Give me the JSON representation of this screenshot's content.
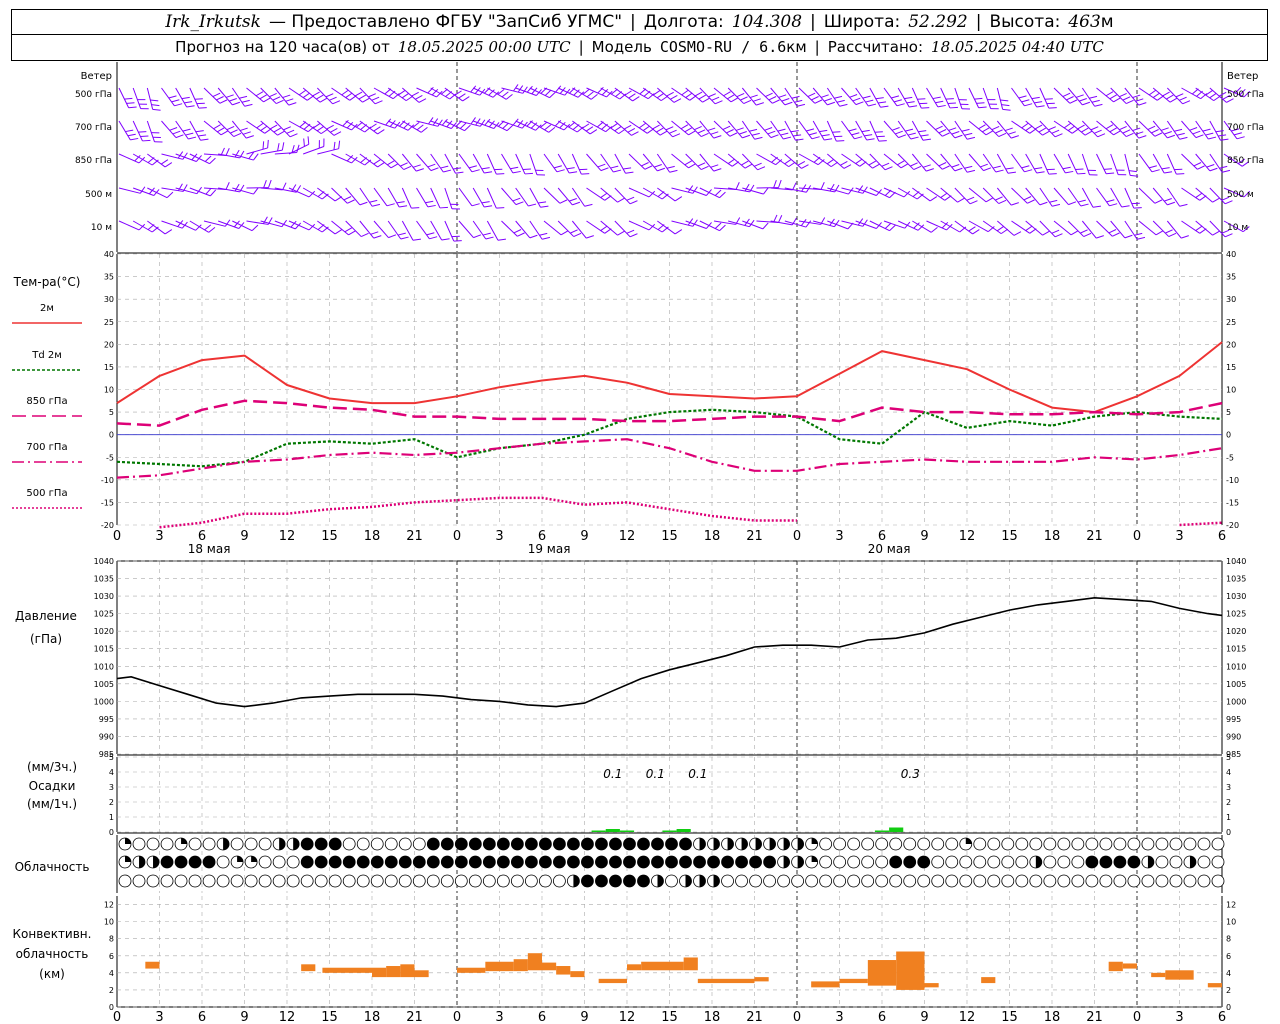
{
  "header": {
    "station": "Irk_Irkutsk",
    "provider": "— Предоставлено ФГБУ \"ЗапСиб УГМС\"",
    "lon_label": "Долгота:",
    "lon_value": "104.308",
    "lat_label": "Широта:",
    "lat_value": "52.292",
    "alt_label": "Высота:",
    "alt_value": "463",
    "alt_unit": "м",
    "forecast_label": "Прогноз на 120 часа(ов) от",
    "forecast_start": "18.05.2025 00:00 UTC",
    "model_label": "Модель",
    "model_name": "COSMO-RU / 6.6",
    "model_unit": "км",
    "computed_label": "Рассчитано:",
    "computed_time": "18.05.2025 04:40 UTC"
  },
  "colors": {
    "wind": "#8000ff",
    "t2m": "#ee3333",
    "td2m": "#007700",
    "t850": "#dd0077",
    "t700": "#dd0077",
    "t500": "#dd0077",
    "zero_line": "#3333cc",
    "pressure": "#000000",
    "precip": "#11cc11",
    "conv_cloud": "#f08020"
  },
  "wind_panel": {
    "label": "Ветер",
    "levels": [
      "500 гПа",
      "700 гПа",
      "850 гПа",
      "500 м",
      "10 м"
    ]
  },
  "temp_panel": {
    "title": "Тем-ра(°C)",
    "legend": [
      {
        "label": "2м",
        "key": "t2m",
        "dash": ""
      },
      {
        "label": "Td  2м",
        "key": "td2m",
        "dash": "3,2"
      },
      {
        "label": "850 гПа",
        "key": "t850",
        "dash": "14,6"
      },
      {
        "label": "700 гПа",
        "key": "t700",
        "dash": "12,4,2,4"
      },
      {
        "label": "500 гПа",
        "key": "t500",
        "dash": "2,2"
      }
    ],
    "y_ticks": [
      40,
      35,
      30,
      25,
      20,
      15,
      10,
      5,
      0,
      -5,
      -10,
      -15,
      -20
    ]
  },
  "time_axis": {
    "hour_labels": [
      "0",
      "3",
      "6",
      "9",
      "12",
      "15",
      "18",
      "21",
      "0",
      "3",
      "6",
      "9",
      "12",
      "15",
      "18",
      "21",
      "0",
      "3",
      "6",
      "9",
      "12",
      "15",
      "18",
      "21",
      "0",
      "3",
      "6"
    ],
    "day_labels": [
      "18 мая",
      "19 мая",
      "20 мая"
    ]
  },
  "pressure_panel": {
    "title_line1": "Давление",
    "title_line2": "(гПа)",
    "y_ticks": [
      1040,
      1035,
      1030,
      1025,
      1020,
      1015,
      1010,
      1005,
      1000,
      995,
      990,
      985
    ]
  },
  "precip_panel": {
    "label_top": "(мм/3ч.)",
    "label_mid": "Осадки",
    "label_bot": "(мм/1ч.)",
    "y_ticks": [
      5,
      4,
      3,
      2,
      1,
      0
    ],
    "annotations": [
      "0.1",
      "0.1",
      "0.1",
      "0.3"
    ]
  },
  "cloud_panel": {
    "label": "Облачность"
  },
  "conv_panel": {
    "label_line1": "Конвективн.",
    "label_line2": "облачность",
    "label_line3": "(км)",
    "y_ticks": [
      12,
      10,
      8,
      6,
      4,
      2,
      0
    ]
  },
  "chart_data": [
    {
      "type": "line",
      "title": "Тем-ра(°C)",
      "x_unit": "hours since 18.05.2025 00:00 UTC",
      "x": [
        0,
        3,
        6,
        9,
        12,
        15,
        18,
        21,
        24,
        27,
        30,
        33,
        36,
        39,
        42,
        45,
        48,
        51,
        54,
        57,
        60,
        63,
        66,
        69,
        72,
        75,
        78
      ],
      "ylim": [
        -20,
        40
      ],
      "series": [
        {
          "name": "2м",
          "values": [
            7,
            13,
            16.5,
            17.5,
            11,
            8,
            7,
            7,
            8.5,
            10.5,
            12,
            13,
            11.5,
            9,
            8.5,
            8,
            8.5,
            13.5,
            18.5,
            16.5,
            14.5,
            10,
            6,
            5,
            8.5,
            13,
            20.5
          ]
        },
        {
          "name": "Td  2м",
          "values": [
            -6,
            -6.5,
            -7,
            -6,
            -2,
            -1.5,
            -2,
            -1,
            -5,
            -3,
            -2,
            0,
            3.5,
            5,
            5.5,
            5,
            4,
            -1,
            -2,
            5,
            1.5,
            3,
            2,
            4,
            5,
            4,
            3.5
          ]
        },
        {
          "name": "850 гПа",
          "values": [
            2.5,
            2,
            5.5,
            7.5,
            7,
            6,
            5.5,
            4,
            4,
            3.5,
            3.5,
            3.5,
            3,
            3,
            3.5,
            4,
            4,
            3,
            6,
            5,
            5,
            4.5,
            4.5,
            5,
            4.5,
            5,
            7
          ]
        },
        {
          "name": "700 гПа",
          "values": [
            -9.5,
            -9,
            -7.5,
            -6,
            -5.5,
            -4.5,
            -4,
            -4.5,
            -4,
            -3,
            -2,
            -1.5,
            -1,
            -3,
            -6,
            -8,
            -8,
            -6.5,
            -6,
            -5.5,
            -6,
            -6,
            -6,
            -5,
            -5.5,
            -4.5,
            -3
          ]
        },
        {
          "name": "500 гПа",
          "values": [
            null,
            -21,
            -19.5,
            -17.5,
            -17.5,
            -16.5,
            -16,
            -15,
            -14.5,
            -14,
            -14,
            -15.5,
            -15,
            -16.5,
            -18,
            -19,
            -19,
            null,
            null,
            null,
            null,
            null,
            null,
            null,
            null,
            -20,
            -19.5
          ]
        }
      ]
    },
    {
      "type": "line",
      "title": "Давление (гПа)",
      "x_unit": "hours since 18.05.2025 00:00 UTC",
      "x": [
        0,
        1,
        3,
        5,
        7,
        9,
        11,
        13,
        15,
        17,
        19,
        21,
        23,
        25,
        27,
        29,
        31,
        33,
        35,
        37,
        39,
        41,
        43,
        45,
        47,
        49,
        51,
        53,
        55,
        57,
        59,
        61,
        63,
        65,
        67,
        69,
        71,
        73,
        75,
        77,
        78
      ],
      "ylim": [
        985,
        1040
      ],
      "series": [
        {
          "name": "Давление",
          "values": [
            1006.5,
            1007,
            1004.5,
            1002,
            999.5,
            998.5,
            999.5,
            1001,
            1001.5,
            1002,
            1002,
            1002,
            1001.5,
            1000.5,
            1000,
            999,
            998.5,
            999.5,
            1003,
            1006.5,
            1009,
            1011,
            1013,
            1015.5,
            1016,
            1016,
            1015.5,
            1017.5,
            1018,
            1019.5,
            1022,
            1024,
            1026,
            1027.5,
            1028.5,
            1029.5,
            1029,
            1028.5,
            1026.5,
            1025,
            1024.5
          ]
        }
      ]
    },
    {
      "type": "bar",
      "title": "Осадки (мм/1ч.)",
      "x_unit": "hours since 18.05.2025 00:00 UTC",
      "x": [
        34,
        35,
        36,
        39,
        40,
        54,
        55
      ],
      "values": [
        0.1,
        0.2,
        0.1,
        0.1,
        0.2,
        0.1,
        0.3
      ],
      "ylim": [
        0,
        5
      ]
    },
    {
      "type": "bar",
      "title": "Конвективн. облачность (км)",
      "x_unit": "hours since 18.05.2025 00:00 UTC",
      "bars": [
        {
          "x": [
            2,
            3
          ],
          "bottom": 4.5,
          "top": 5.3
        },
        {
          "x": [
            13,
            14
          ],
          "bottom": 4.2,
          "top": 5.0
        },
        {
          "x": [
            14.5,
            18
          ],
          "bottom": 4.0,
          "top": 4.6
        },
        {
          "x": [
            18,
            19
          ],
          "bottom": 3.5,
          "top": 4.6
        },
        {
          "x": [
            19,
            20
          ],
          "bottom": 3.5,
          "top": 4.8
        },
        {
          "x": [
            20,
            21
          ],
          "bottom": 3.5,
          "top": 5.0
        },
        {
          "x": [
            21,
            22
          ],
          "bottom": 3.5,
          "top": 4.3
        },
        {
          "x": [
            24,
            26
          ],
          "bottom": 4.0,
          "top": 4.6
        },
        {
          "x": [
            26,
            28
          ],
          "bottom": 4.2,
          "top": 5.3
        },
        {
          "x": [
            28,
            29
          ],
          "bottom": 4.2,
          "top": 5.6
        },
        {
          "x": [
            29,
            30
          ],
          "bottom": 4.3,
          "top": 6.3
        },
        {
          "x": [
            30,
            31
          ],
          "bottom": 4.3,
          "top": 5.2
        },
        {
          "x": [
            31,
            32
          ],
          "bottom": 3.8,
          "top": 4.8
        },
        {
          "x": [
            32,
            33
          ],
          "bottom": 3.5,
          "top": 4.2
        },
        {
          "x": [
            34,
            36
          ],
          "bottom": 2.8,
          "top": 3.3
        },
        {
          "x": [
            36,
            37
          ],
          "bottom": 4.3,
          "top": 5.0
        },
        {
          "x": [
            37,
            40
          ],
          "bottom": 4.3,
          "top": 5.3
        },
        {
          "x": [
            40,
            41
          ],
          "bottom": 4.3,
          "top": 5.8
        },
        {
          "x": [
            41,
            45
          ],
          "bottom": 2.8,
          "top": 3.3
        },
        {
          "x": [
            45,
            46
          ],
          "bottom": 3.0,
          "top": 3.5
        },
        {
          "x": [
            49,
            51
          ],
          "bottom": 2.3,
          "top": 3.0
        },
        {
          "x": [
            51,
            53
          ],
          "bottom": 2.8,
          "top": 3.3
        },
        {
          "x": [
            53,
            55
          ],
          "bottom": 2.5,
          "top": 5.5
        },
        {
          "x": [
            55,
            57
          ],
          "bottom": 2.0,
          "top": 6.5
        },
        {
          "x": [
            57,
            58
          ],
          "bottom": 2.3,
          "top": 2.8
        },
        {
          "x": [
            61,
            62
          ],
          "bottom": 2.8,
          "top": 3.5
        },
        {
          "x": [
            70,
            71
          ],
          "bottom": 4.2,
          "top": 5.3
        },
        {
          "x": [
            71,
            72
          ],
          "bottom": 4.5,
          "top": 5.1
        },
        {
          "x": [
            73,
            74
          ],
          "bottom": 3.5,
          "top": 4.0
        },
        {
          "x": [
            74,
            76
          ],
          "bottom": 3.2,
          "top": 4.3
        },
        {
          "x": [
            77,
            78
          ],
          "bottom": 2.3,
          "top": 2.8
        }
      ],
      "ylim": [
        0,
        13
      ]
    }
  ]
}
